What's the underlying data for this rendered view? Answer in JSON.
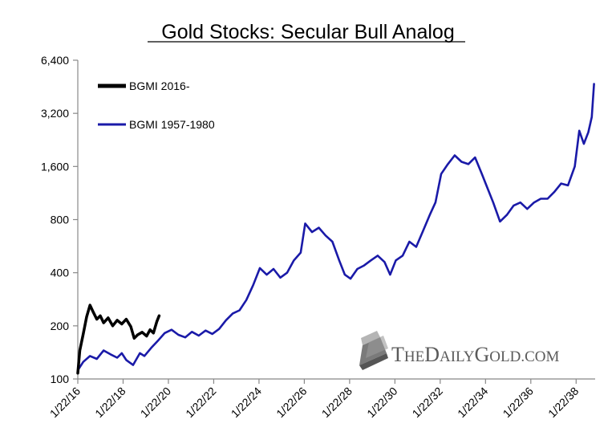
{
  "chart_data": {
    "type": "line",
    "title": "Gold Stocks: Secular Bull Analog",
    "yscale": "log",
    "ylim": [
      100,
      6400
    ],
    "yticks": [
      100,
      200,
      400,
      800,
      1600,
      3200,
      6400
    ],
    "ytick_labels": [
      "100",
      "200",
      "400",
      "800",
      "1,600",
      "3,200",
      "6,400"
    ],
    "xlim": [
      2016.06,
      2038.9
    ],
    "xticks": [
      2016.06,
      2018.06,
      2020.06,
      2022.06,
      2024.06,
      2026.06,
      2028.06,
      2030.06,
      2032.06,
      2034.06,
      2036.06,
      2038.06
    ],
    "xtick_labels": [
      "1/22/16",
      "1/22/18",
      "1/22/20",
      "1/22/22",
      "1/22/24",
      "1/22/26",
      "1/22/28",
      "1/22/30",
      "1/22/32",
      "1/22/34",
      "1/22/36",
      "1/22/38"
    ],
    "series": [
      {
        "name": "BGMI 2016-",
        "color": "#000000",
        "x": [
          2016.06,
          2016.15,
          2016.3,
          2016.45,
          2016.6,
          2016.75,
          2016.9,
          2017.05,
          2017.2,
          2017.4,
          2017.6,
          2017.8,
          2018.0,
          2018.2,
          2018.4,
          2018.55,
          2018.7,
          2018.9,
          2019.1,
          2019.25,
          2019.4,
          2019.55,
          2019.65
        ],
        "y": [
          108,
          145,
          180,
          225,
          262,
          238,
          218,
          228,
          208,
          222,
          200,
          215,
          205,
          218,
          198,
          170,
          178,
          184,
          175,
          190,
          182,
          212,
          228
        ]
      },
      {
        "name": "BGMI 1957-1980",
        "color": "#1a1aa8",
        "x": [
          2016.06,
          2016.3,
          2016.6,
          2016.9,
          2017.2,
          2017.5,
          2017.8,
          2018.0,
          2018.2,
          2018.5,
          2018.8,
          2019.0,
          2019.3,
          2019.6,
          2019.9,
          2020.2,
          2020.5,
          2020.8,
          2021.1,
          2021.4,
          2021.7,
          2022.0,
          2022.3,
          2022.6,
          2022.9,
          2023.2,
          2023.5,
          2023.8,
          2024.1,
          2024.4,
          2024.7,
          2025.0,
          2025.3,
          2025.6,
          2025.9,
          2026.1,
          2026.4,
          2026.7,
          2027.0,
          2027.3,
          2027.6,
          2027.85,
          2028.1,
          2028.4,
          2028.7,
          2029.0,
          2029.3,
          2029.6,
          2029.85,
          2030.1,
          2030.4,
          2030.7,
          2031.0,
          2031.3,
          2031.6,
          2031.85,
          2032.1,
          2032.4,
          2032.7,
          2033.0,
          2033.3,
          2033.6,
          2033.9,
          2034.1,
          2034.4,
          2034.7,
          2035.0,
          2035.3,
          2035.6,
          2035.9,
          2036.2,
          2036.5,
          2036.8,
          2037.1,
          2037.4,
          2037.7,
          2038.0,
          2038.2,
          2038.4,
          2038.6,
          2038.75,
          2038.85
        ],
        "y": [
          112,
          125,
          135,
          130,
          145,
          138,
          132,
          140,
          128,
          120,
          140,
          135,
          150,
          165,
          182,
          190,
          178,
          172,
          185,
          176,
          188,
          180,
          192,
          215,
          235,
          245,
          280,
          340,
          425,
          390,
          420,
          375,
          400,
          470,
          520,
          760,
          680,
          720,
          650,
          600,
          470,
          390,
          370,
          420,
          440,
          470,
          500,
          460,
          390,
          470,
          500,
          600,
          560,
          690,
          850,
          1000,
          1450,
          1650,
          1850,
          1700,
          1650,
          1800,
          1450,
          1250,
          1000,
          780,
          850,
          960,
          1000,
          920,
          1000,
          1050,
          1050,
          1150,
          1280,
          1250,
          1600,
          2550,
          2150,
          2500,
          3050,
          4700
        ]
      }
    ],
    "legend": {
      "position": "top-left",
      "entries": [
        {
          "label": "BGMI 2016-",
          "color": "#000000"
        },
        {
          "label": "BGMI 1957-1980",
          "color": "#1a1aa8"
        }
      ]
    },
    "watermark": "THEDAILYGOLD.COM",
    "watermark_parts": [
      "T",
      "HE",
      "D",
      "AILY",
      "G",
      "OLD",
      ".COM"
    ],
    "grid": false
  }
}
